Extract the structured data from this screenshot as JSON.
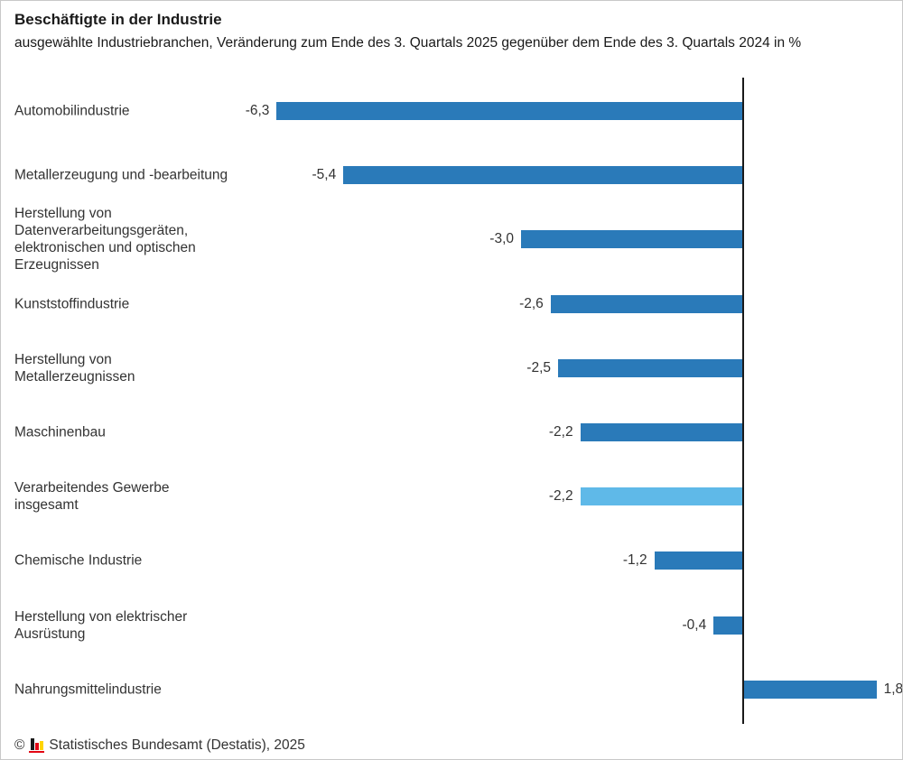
{
  "header": {
    "title": "Beschäftigte in der Industrie",
    "subtitle": "ausgewählte Industriebranchen, Veränderung zum Ende des 3. Quartals 2025 gegenüber dem Ende des 3. Quartals 2024 in %"
  },
  "chart_data": {
    "type": "bar",
    "orientation": "horizontal",
    "title": "Beschäftigte in der Industrie",
    "subtitle": "ausgewählte Industriebranchen, Veränderung zum Ende des 3. Quartals 2025 gegenüber dem Ende des 3. Quartals 2024 in %",
    "unit": "%",
    "categories": [
      "Automobilindustrie",
      "Metallerzeugung und -bearbeitung",
      "Herstellung von Datenverarbeitungsgeräten, elektronischen und optischen Erzeugnissen",
      "Kunststoffindustrie",
      "Herstellung von Metallerzeugnissen",
      "Maschinenbau",
      "Verarbeitendes Gewerbe insgesamt",
      "Chemische Industrie",
      "Herstellung von elektrischer Ausrüstung",
      "Nahrungsmittelindustrie"
    ],
    "values": [
      -6.3,
      -5.4,
      -3.0,
      -2.6,
      -2.5,
      -2.2,
      -2.2,
      -1.2,
      -0.4,
      1.8
    ],
    "value_labels": [
      "-6,3",
      "-5,4",
      "-3,0",
      "-2,6",
      "-2,5",
      "-2,2",
      "-2,2",
      "-1,2",
      "-0,4",
      "1,8"
    ],
    "highlight_index": 6,
    "highlight_category": "Verarbeitendes Gewerbe insgesamt",
    "xlim": [
      -6.5,
      2.2
    ],
    "grid": false,
    "legend": false,
    "zero_line": true,
    "colors": {
      "bar": "#2a7ab9",
      "highlight": "#5fb9e8",
      "axis": "#1a1a1a",
      "text": "#333333"
    }
  },
  "footer": {
    "copyright": "©",
    "source": "Statistisches Bundesamt (Destatis), 2025",
    "logo_icon": "destatis-bar-chart-logo",
    "logo_colors": {
      "bar1": "#1a1a1a",
      "bar2": "#e30613",
      "bar3": "#ffd500",
      "baseline": "#e30613"
    }
  }
}
